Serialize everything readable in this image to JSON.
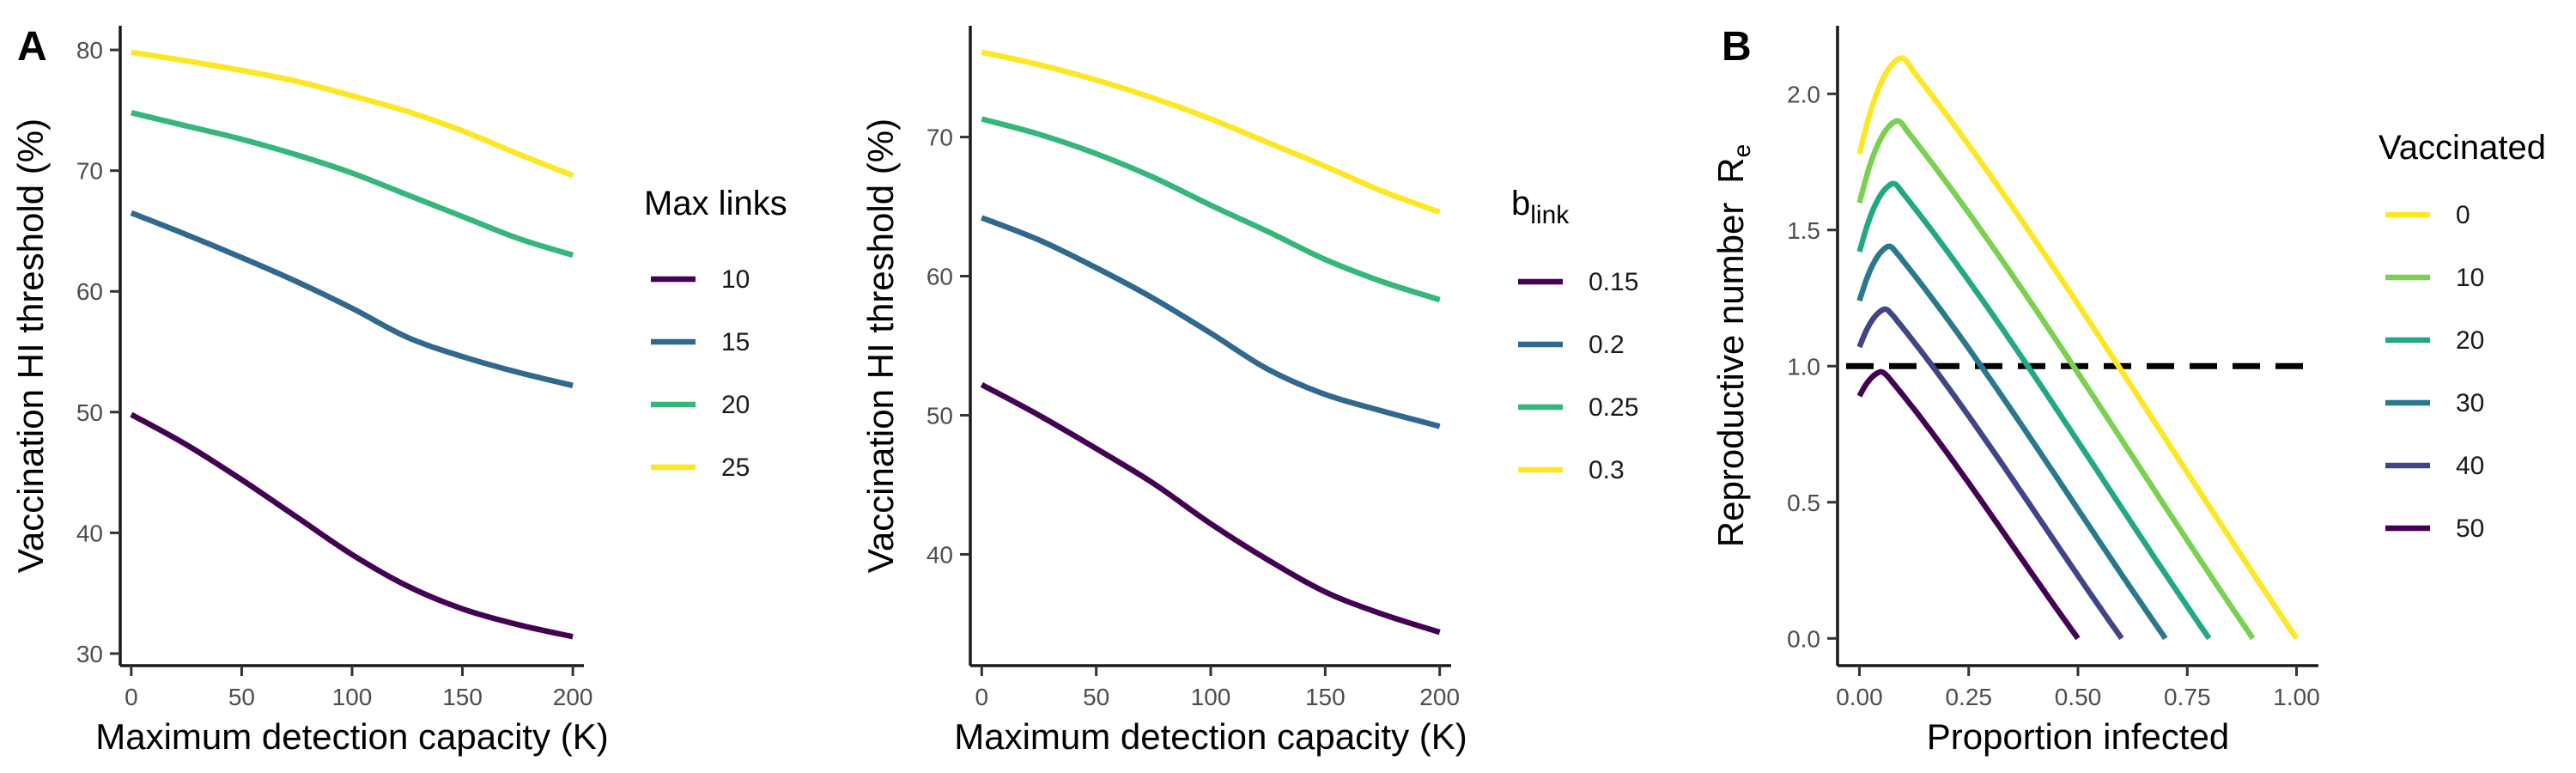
{
  "chart_data": [
    {
      "panel": "A",
      "type": "line",
      "xlabel": "Maximum detection capacity (K)",
      "ylabel": "Vaccination HI threshold (%)",
      "xlim": [
        -5,
        205
      ],
      "ylim": [
        29,
        82
      ],
      "xticks": [
        0,
        50,
        100,
        150,
        200
      ],
      "yticks": [
        30,
        40,
        50,
        60,
        70,
        80
      ],
      "legend": {
        "title": "Max links",
        "position": "right"
      },
      "x": [
        0,
        25,
        50,
        75,
        100,
        125,
        150,
        175,
        200
      ],
      "series": [
        {
          "name": "10",
          "color": "#440154",
          "values": [
            49.8,
            47.3,
            44.4,
            41.3,
            38.2,
            35.6,
            33.7,
            32.4,
            31.4
          ]
        },
        {
          "name": "15",
          "color": "#31688E",
          "values": [
            66.5,
            64.7,
            62.8,
            60.8,
            58.6,
            56.2,
            54.6,
            53.3,
            52.2
          ]
        },
        {
          "name": "20",
          "color": "#35B779",
          "values": [
            74.8,
            73.7,
            72.6,
            71.3,
            69.8,
            68.0,
            66.2,
            64.4,
            63.0
          ]
        },
        {
          "name": "25",
          "color": "#FDE725",
          "values": [
            79.8,
            79.1,
            78.3,
            77.4,
            76.2,
            74.9,
            73.3,
            71.4,
            69.6
          ]
        }
      ]
    },
    {
      "panel": "",
      "type": "line",
      "xlabel": "Maximum detection capacity (K)",
      "ylabel": "Vaccination HI threshold (%)",
      "xlim": [
        -5,
        205
      ],
      "ylim": [
        32,
        78
      ],
      "xticks": [
        0,
        50,
        100,
        150,
        200
      ],
      "yticks": [
        40,
        50,
        60,
        70
      ],
      "legend": {
        "title": "b",
        "title_subscript": "link",
        "position": "right"
      },
      "x": [
        0,
        25,
        50,
        75,
        100,
        125,
        150,
        175,
        200
      ],
      "series": [
        {
          "name": "0.15",
          "color": "#440154",
          "values": [
            52.2,
            50.0,
            47.6,
            45.1,
            42.2,
            39.6,
            37.3,
            35.7,
            34.4
          ]
        },
        {
          "name": "0.2",
          "color": "#31688E",
          "values": [
            64.2,
            62.6,
            60.6,
            58.4,
            55.9,
            53.3,
            51.5,
            50.3,
            49.2
          ]
        },
        {
          "name": "0.25",
          "color": "#35B779",
          "values": [
            71.3,
            70.2,
            68.8,
            67.1,
            65.1,
            63.2,
            61.2,
            59.6,
            58.3
          ]
        },
        {
          "name": "0.3",
          "color": "#FDE725",
          "values": [
            76.1,
            75.2,
            74.1,
            72.8,
            71.3,
            69.6,
            67.9,
            66.1,
            64.6
          ]
        }
      ]
    },
    {
      "panel": "B",
      "type": "line",
      "xlabel": "Proportion infected",
      "ylabel": "Reproductive number",
      "ylabel_symbol": "R",
      "ylabel_subscript": "e",
      "xlim": [
        -0.05,
        1.05
      ],
      "ylim": [
        -0.1,
        2.25
      ],
      "xticks": [
        "0.00",
        "0.25",
        "0.50",
        "0.75",
        "1.00"
      ],
      "yticks": [
        "0.0",
        "0.5",
        "1.0",
        "1.5",
        "2.0"
      ],
      "reference_line": {
        "y": 1.0,
        "style": "dashed",
        "color": "#000000"
      },
      "legend": {
        "title": "Vaccinated",
        "position": "right"
      },
      "series": [
        {
          "name": "0",
          "color": "#FDE725",
          "v": 0.0,
          "values_note": ""
        },
        {
          "name": "10",
          "color": "#7AD151",
          "v": 0.1
        },
        {
          "name": "20",
          "color": "#22A884",
          "v": 0.2
        },
        {
          "name": "30",
          "color": "#2A788E",
          "v": 0.3
        },
        {
          "name": "40",
          "color": "#414487",
          "v": 0.4
        },
        {
          "name": "50",
          "color": "#440154",
          "v": 0.5
        }
      ],
      "peaks": [
        2.13,
        1.9,
        1.67,
        1.44,
        1.21,
        0.98
      ],
      "starts": [
        1.78,
        1.6,
        1.42,
        1.24,
        1.07,
        0.89
      ]
    }
  ]
}
